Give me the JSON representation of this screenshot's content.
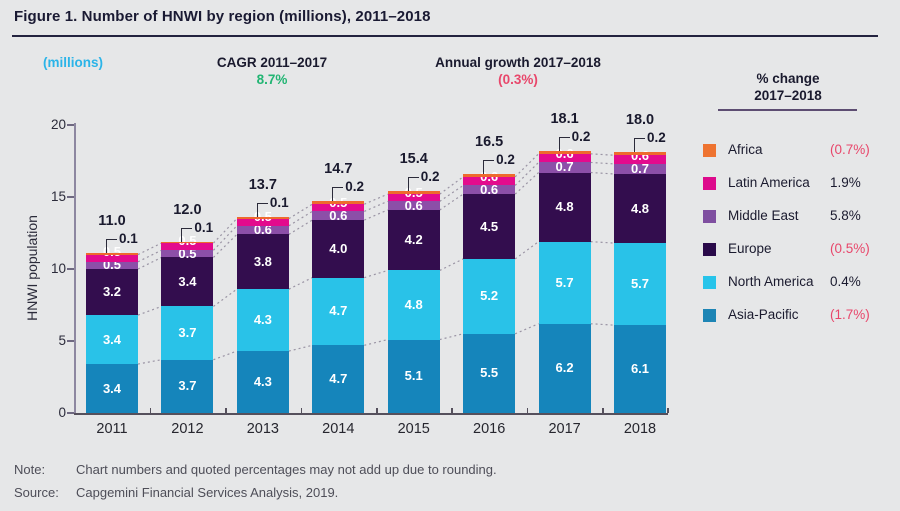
{
  "title": "Figure 1. Number of HNWI by region (millions), 2011–2018",
  "header": {
    "units_label": "(millions)",
    "cagr_label": "CAGR 2011–2017",
    "cagr_value": "8.7%",
    "annual_growth_label": "Annual growth 2017–2018",
    "annual_growth_value": "(0.3%)"
  },
  "legend": {
    "header_line1": "% change",
    "header_line2": "2017–2018",
    "items": [
      {
        "label": "Africa",
        "value": "(0.7%)",
        "negative": true,
        "color": "#ee7330"
      },
      {
        "label": "Latin America",
        "value": "1.9%",
        "negative": false,
        "color": "#dd0a8c"
      },
      {
        "label": "Middle East",
        "value": "5.8%",
        "negative": false,
        "color": "#7f4fa0"
      },
      {
        "label": "Europe",
        "value": "(0.5%)",
        "negative": true,
        "color": "#2a0a4a"
      },
      {
        "label": "North America",
        "value": "0.4%",
        "negative": false,
        "color": "#27c4ea"
      },
      {
        "label": "Asia-Pacific",
        "value": "(1.7%)",
        "negative": true,
        "color": "#1d85b5"
      }
    ]
  },
  "chart_data": {
    "type": "bar",
    "stacked": true,
    "title": "Number of HNWI by region (millions), 2011–2018",
    "ylabel": "HNWI population",
    "units": "millions",
    "ylim": [
      0,
      20
    ],
    "yticks": [
      0,
      5,
      10,
      15,
      20
    ],
    "grid": false,
    "legend_position": "right",
    "categories": [
      "2011",
      "2012",
      "2013",
      "2014",
      "2015",
      "2016",
      "2017",
      "2018"
    ],
    "series": [
      {
        "name": "Asia-Pacific",
        "color": "#1585bb",
        "values": [
          3.4,
          3.7,
          4.3,
          4.7,
          5.1,
          5.5,
          6.2,
          6.1
        ]
      },
      {
        "name": "North America",
        "color": "#29c2e8",
        "values": [
          3.4,
          3.7,
          4.3,
          4.7,
          4.8,
          5.2,
          5.7,
          5.7
        ]
      },
      {
        "name": "Europe",
        "color": "#330d4e",
        "values": [
          3.2,
          3.4,
          3.8,
          4.0,
          4.2,
          4.5,
          4.8,
          4.8
        ]
      },
      {
        "name": "Middle East",
        "color": "#8c4fa8",
        "values": [
          0.5,
          0.5,
          0.6,
          0.6,
          0.6,
          0.6,
          0.7,
          0.7
        ]
      },
      {
        "name": "Latin America",
        "color": "#e30b8d",
        "values": [
          0.5,
          0.5,
          0.5,
          0.5,
          0.5,
          0.6,
          0.6,
          0.6
        ]
      },
      {
        "name": "Africa",
        "color": "#ee6a2d",
        "values": [
          0.1,
          0.1,
          0.1,
          0.2,
          0.2,
          0.2,
          0.2,
          0.2
        ]
      }
    ],
    "totals": [
      "11.0",
      "12.0",
      "13.7",
      "14.7",
      "15.4",
      "16.5",
      "18.1",
      "18.0"
    ],
    "africa_callouts": [
      "0.1",
      "0.1",
      "0.1",
      "0.2",
      "0.2",
      "0.2",
      "0.2",
      "0.2"
    ]
  },
  "footer": {
    "note_label": "Note:",
    "note_text": "Chart numbers and quoted percentages may not add up due to rounding.",
    "source_label": "Source:",
    "source_text": "Capgemini Financial Services Analysis, 2019."
  },
  "colors": {
    "background": "#e6e7e8",
    "title_text": "#1a1a33",
    "units_text": "#2bb4e8",
    "positive_green": "#22b573",
    "negative_red": "#e8476b",
    "axis": "#8d87a0",
    "connector": "#9a94a4"
  }
}
